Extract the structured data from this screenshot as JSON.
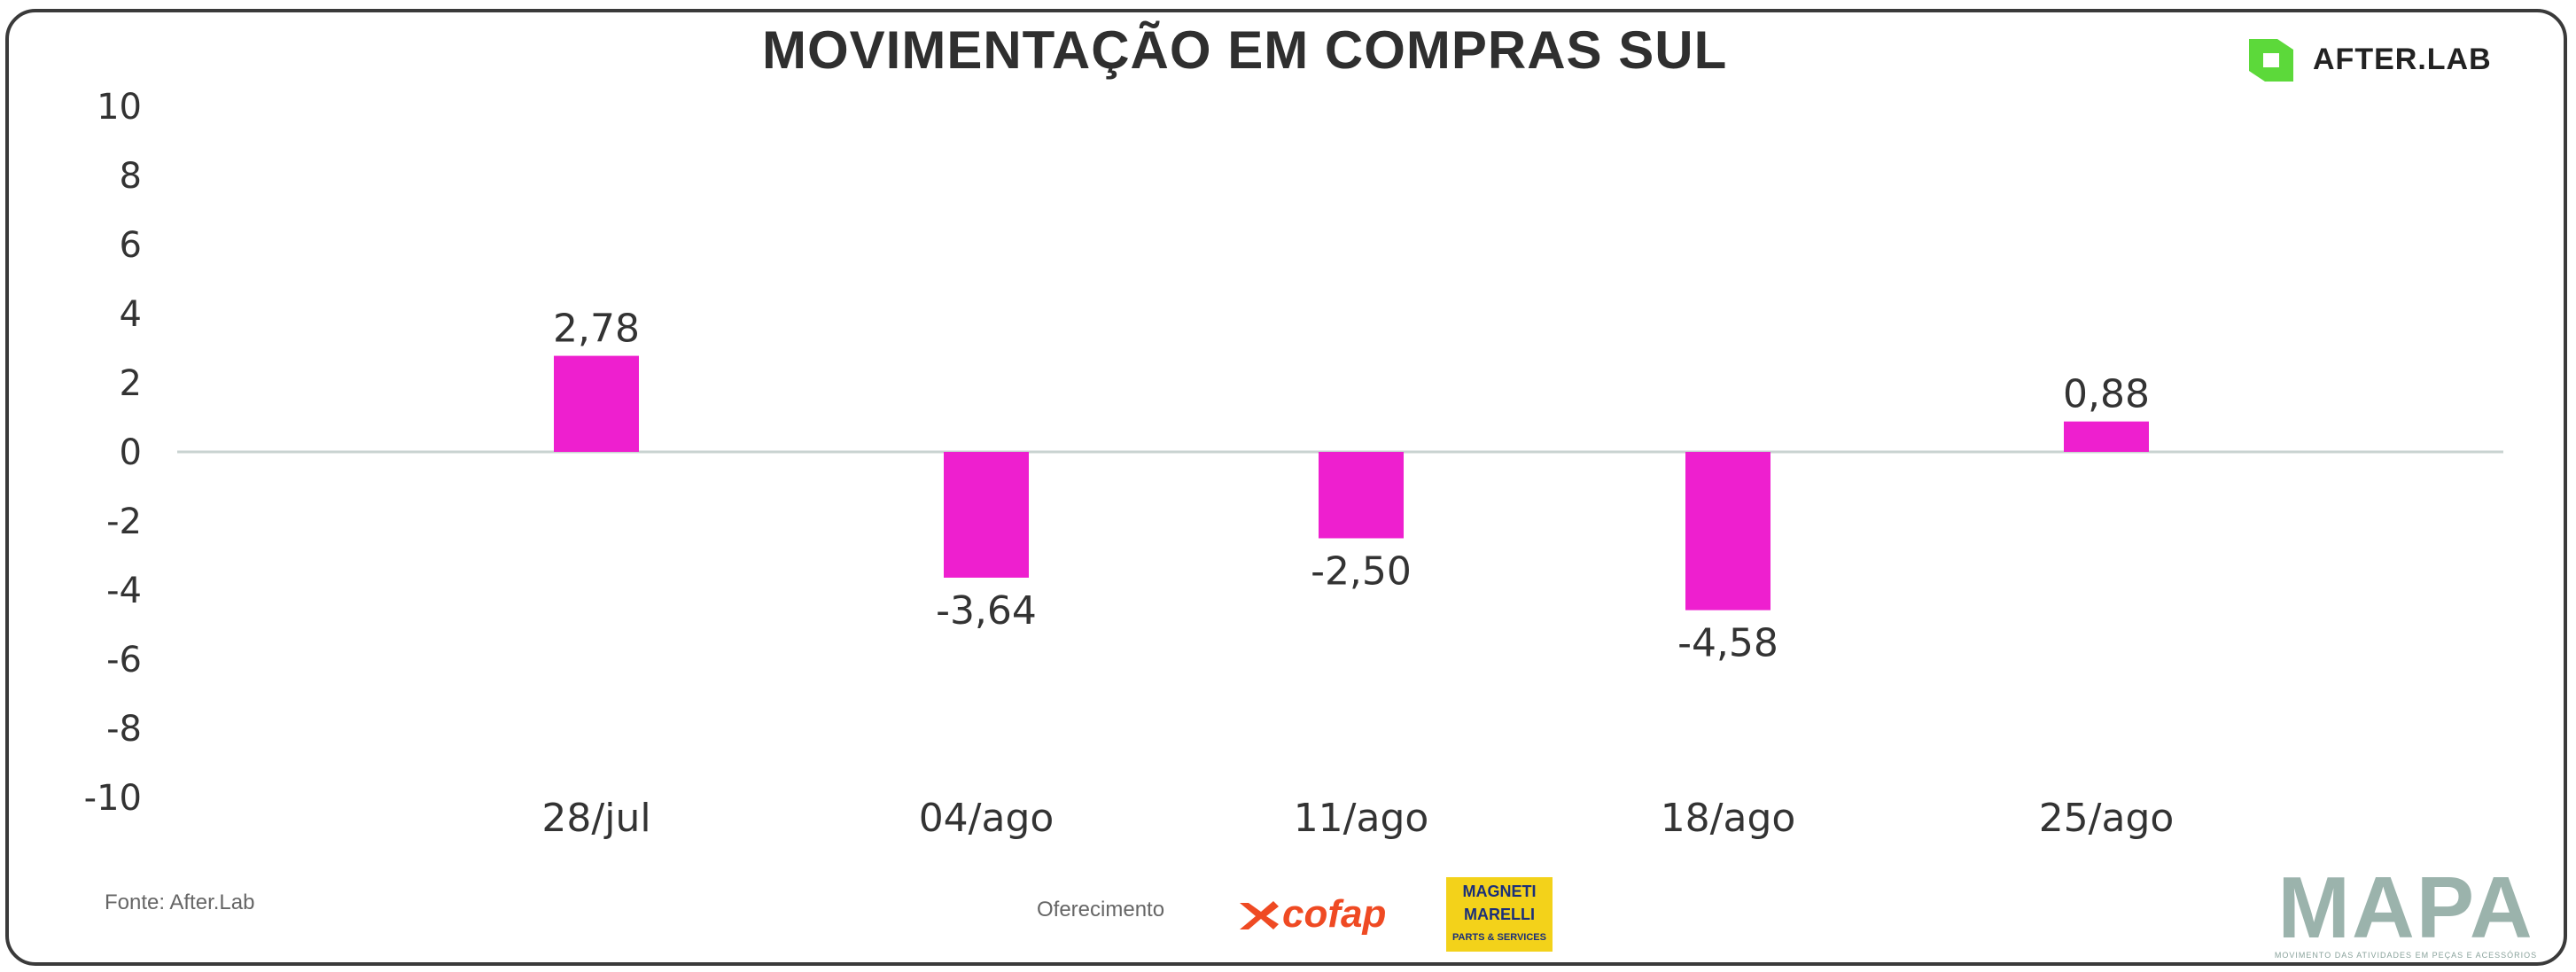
{
  "header": {
    "title": "MOVIMENTAÇÃO EM COMPRAS SUL",
    "brand": "AFTER.LAB"
  },
  "footer": {
    "source": "Fonte: After.Lab",
    "developer_label": "Oferecimento",
    "sponsor_1": "cofap",
    "sponsor_2_line1": "MAGNETI",
    "sponsor_2_line2": "MARELLI",
    "sponsor_2_sub": "PARTS & SERVICES",
    "mapa_word": "MAPA",
    "mapa_tagline": "MOVIMENTO DAS ATIVIDADES EM PEÇAS E ACESSÓRIOS"
  },
  "colors": {
    "bar": "#ee1fcf",
    "zero_line": "#c9d3d1",
    "brand_green": "#5cd93a",
    "cofap_orange": "#ef4a23"
  },
  "chart_data": {
    "type": "bar",
    "categories": [
      "28/jul",
      "04/ago",
      "11/ago",
      "18/ago",
      "25/ago"
    ],
    "values": [
      2.78,
      -3.64,
      -2.5,
      -4.58,
      0.88
    ],
    "value_labels": [
      "2,78",
      "-3,64",
      "-2,50",
      "-4,58",
      "0,88"
    ],
    "yticks": [
      10,
      8,
      6,
      4,
      2,
      0,
      -2,
      -4,
      -6,
      -8,
      -10
    ],
    "ylim": [
      -10,
      10
    ],
    "grid": false,
    "legend": "none"
  }
}
